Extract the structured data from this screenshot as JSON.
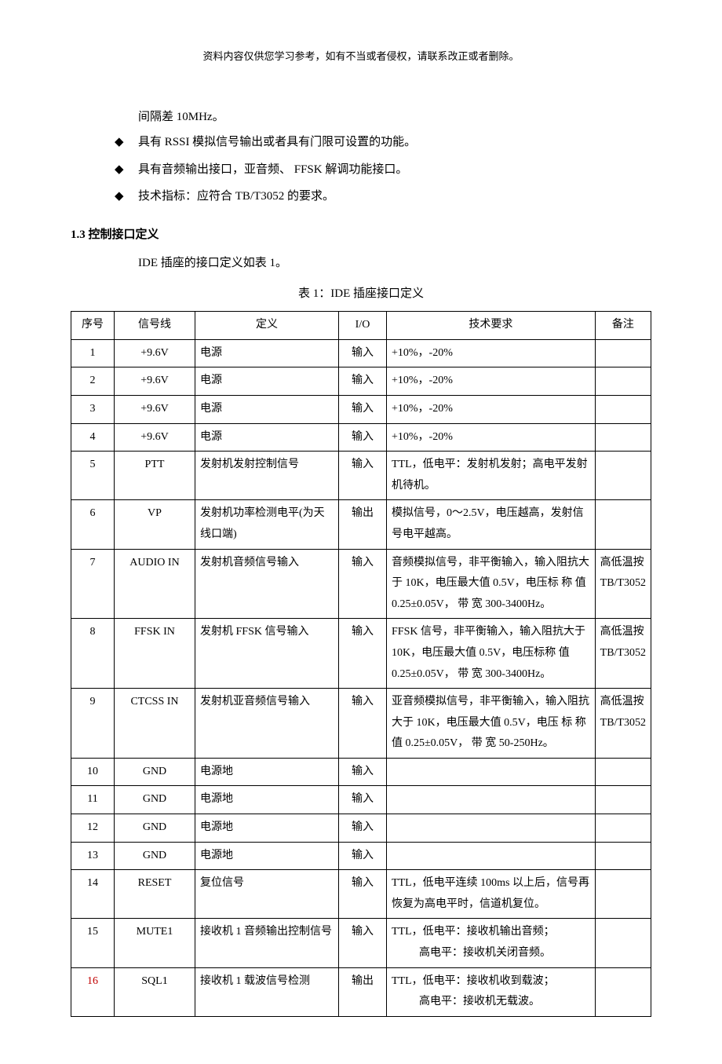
{
  "header_note": "资料内容仅供您学习参考，如有不当或者侵权，请联系改正或者删除。",
  "intro_line": "间隔差 10MHz。",
  "bullets": [
    "具有 RSSI 模拟信号输出或者具有门限可设置的功能。",
    "具有音频输出接口，亚音频、 FFSK 解调功能接口。",
    "技术指标：应符合 TB/T3052 的要求。"
  ],
  "section_heading": "1.3 控制接口定义",
  "section_body": "IDE 插座的接口定义如表 1。",
  "table_caption": "表 1：IDE 插座接口定义",
  "columns": [
    "序号",
    "信号线",
    "定义",
    "I/O",
    "技术要求",
    "备注"
  ],
  "rows": [
    {
      "seq": "1",
      "signal": "+9.6V",
      "def": "电源",
      "io": "输入",
      "req": "+10%，-20%",
      "note": ""
    },
    {
      "seq": "2",
      "signal": "+9.6V",
      "def": "电源",
      "io": "输入",
      "req": "+10%，-20%",
      "note": ""
    },
    {
      "seq": "3",
      "signal": "+9.6V",
      "def": "电源",
      "io": "输入",
      "req": "+10%，-20%",
      "note": ""
    },
    {
      "seq": "4",
      "signal": "+9.6V",
      "def": "电源",
      "io": "输入",
      "req": "+10%，-20%",
      "note": ""
    },
    {
      "seq": "5",
      "signal": "PTT",
      "def": "发射机发射控制信号",
      "io": "输入",
      "req": "TTL，低电平：发射机发射；高电平发射机待机。",
      "note": ""
    },
    {
      "seq": "6",
      "signal": "VP",
      "def": "发射机功率检测电平(为天线口端)",
      "io": "输出",
      "req": "模拟信号，0～2.5V，电压越高，发射信号电平越高。",
      "note": ""
    },
    {
      "seq": "7",
      "signal": "AUDIO IN",
      "def": "发射机音频信号输入",
      "io": "输入",
      "req": "音频模拟信号，非平衡输入，输入阻抗大于 10K，电压最大值 0.5V，电压标 称 值  0.25±0.05V， 带 宽 300-3400Hz。",
      "note": "高低温按TB/T3052"
    },
    {
      "seq": "8",
      "signal": "FFSK IN",
      "def": "发射机 FFSK 信号输入",
      "io": "输入",
      "req": "FFSK 信号，非平衡输入，输入阻抗大于 10K，电压最大值 0.5V，电压标称 值  0.25±0.05V， 带 宽 300-3400Hz。",
      "note": "高低温按TB/T3052"
    },
    {
      "seq": "9",
      "signal": "CTCSS IN",
      "def": "发射机亚音频信号输入",
      "io": "输入",
      "req": "亚音频模拟信号，非平衡输入，输入阻抗大于 10K，电压最大值 0.5V，电压 标 称 值  0.25±0.05V， 带 宽 50-250Hz。",
      "note": "高低温按TB/T3052"
    },
    {
      "seq": "10",
      "signal": "GND",
      "def": "电源地",
      "io": "输入",
      "req": "",
      "note": ""
    },
    {
      "seq": "11",
      "signal": "GND",
      "def": "电源地",
      "io": "输入",
      "req": "",
      "note": ""
    },
    {
      "seq": "12",
      "signal": "GND",
      "def": "电源地",
      "io": "输入",
      "req": "",
      "note": ""
    },
    {
      "seq": "13",
      "signal": "GND",
      "def": "电源地",
      "io": "输入",
      "req": "",
      "note": ""
    },
    {
      "seq": "14",
      "signal": "RESET",
      "def": "复位信号",
      "io": "输入",
      "req": "TTL，低电平连续 100ms 以上后，信号再恢复为高电平时，信道机复位。",
      "note": ""
    },
    {
      "seq": "15",
      "signal": "MUTE1",
      "def": "接收机 1 音频输出控制信号",
      "io": "输入",
      "req1": "TTL，低电平：接收机输出音频；",
      "req2": "高电平：接收机关闭音频。",
      "note": ""
    },
    {
      "seq": "16",
      "seq_red": true,
      "signal": "SQL1",
      "def": "接收机 1 载波信号检测",
      "io": "输出",
      "req1": "TTL，低电平：接收机收到载波；",
      "req2": "高电平：接收机无载波。",
      "note": ""
    }
  ],
  "styling": {
    "background_color": "#ffffff",
    "text_color": "#000000",
    "seq_red_color": "#c00000",
    "border_color": "#000000",
    "body_fontsize": 15,
    "table_fontsize": 14,
    "header_fontsize": 13,
    "font_family": "SimSun"
  }
}
